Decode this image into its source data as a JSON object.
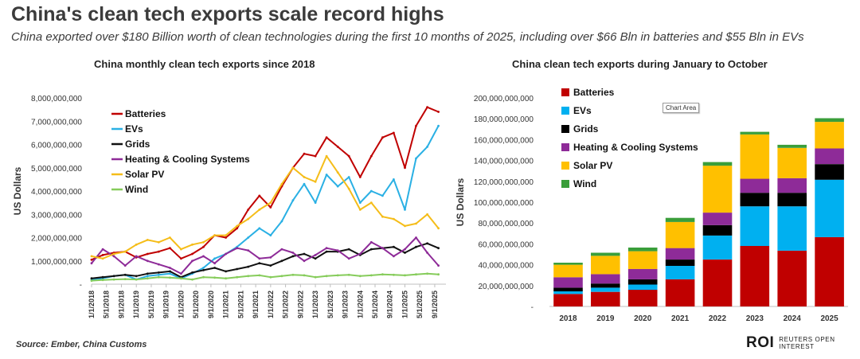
{
  "header": {
    "title": "China's clean tech exports scale record highs",
    "subtitle": "China exported over $180 Billion worth of clean technologies during the first 10 months of 2025, including over $66 Bln in batteries and $55 Bln in EVs"
  },
  "footer": {
    "source": "Source:  Ember, China Customs",
    "logo_main": "ROI",
    "logo_tag": "REUTERS OPEN\nINTEREST"
  },
  "tooltip": "Chart Area",
  "colors": {
    "batteries_line": "#c00000",
    "evs_line": "#2ab0e4",
    "grids_line": "#111111",
    "heating_line": "#8e2b98",
    "solar_line": "#f5bd19",
    "wind_line": "#86cc5b",
    "batteries_bar": "#c00000",
    "evs_bar": "#00b0f0",
    "grids_bar": "#000000",
    "heating_bar": "#8e2b98",
    "solar_bar": "#ffc000",
    "wind_bar": "#3a9e3a"
  },
  "chart_data": [
    {
      "type": "line",
      "title": "China monthly clean tech exports since 2018",
      "xlabel": "",
      "ylabel": "US Dollars",
      "ylim": [
        0,
        8000000000
      ],
      "y_ticks": [
        "-",
        "1,000,000,000",
        "2,000,000,000",
        "3,000,000,000",
        "4,000,000,000",
        "5,000,000,000",
        "6,000,000,000",
        "7,000,000,000",
        "8,000,000,000"
      ],
      "x_ticks": [
        "1/1/2018",
        "5/1/2018",
        "9/1/2018",
        "1/1/2019",
        "5/1/2019",
        "9/1/2019",
        "1/1/2020",
        "5/1/2020",
        "9/1/2020",
        "1/1/2021",
        "5/1/2021",
        "9/1/2021",
        "1/1/2022",
        "5/1/2022",
        "9/1/2022",
        "1/1/2023",
        "5/1/2023",
        "9/1/2023",
        "1/1/2024",
        "5/1/2024",
        "9/1/2024",
        "1/1/2025",
        "5/1/2025",
        "9/1/2025"
      ],
      "x": [
        "2018-01",
        "2018-04",
        "2018-07",
        "2018-10",
        "2019-01",
        "2019-04",
        "2019-07",
        "2019-10",
        "2020-01",
        "2020-04",
        "2020-07",
        "2020-10",
        "2021-01",
        "2021-04",
        "2021-07",
        "2021-10",
        "2022-01",
        "2022-04",
        "2022-07",
        "2022-10",
        "2023-01",
        "2023-04",
        "2023-07",
        "2023-10",
        "2024-01",
        "2024-04",
        "2024-07",
        "2024-10",
        "2025-01",
        "2025-04",
        "2025-07",
        "2025-10"
      ],
      "legend_position": "top-left",
      "series": [
        {
          "name": "Batteries",
          "values": [
            1050000000,
            1250000000,
            1350000000,
            1400000000,
            1150000000,
            1300000000,
            1400000000,
            1550000000,
            1100000000,
            1300000000,
            1600000000,
            2100000000,
            2000000000,
            2400000000,
            3200000000,
            3800000000,
            3300000000,
            4200000000,
            5000000000,
            5600000000,
            5500000000,
            6300000000,
            5900000000,
            5500000000,
            4600000000,
            5500000000,
            6300000000,
            6500000000,
            5000000000,
            6800000000,
            7600000000,
            7400000000
          ]
        },
        {
          "name": "EVs",
          "values": [
            200000000,
            250000000,
            350000000,
            400000000,
            200000000,
            350000000,
            400000000,
            450000000,
            250000000,
            450000000,
            700000000,
            1100000000,
            1300000000,
            1600000000,
            2000000000,
            2400000000,
            2100000000,
            2700000000,
            3600000000,
            4300000000,
            3500000000,
            4700000000,
            4200000000,
            4600000000,
            3500000000,
            4000000000,
            3800000000,
            4500000000,
            3200000000,
            5400000000,
            5900000000,
            6800000000
          ]
        },
        {
          "name": "Grids",
          "values": [
            250000000,
            300000000,
            350000000,
            400000000,
            350000000,
            450000000,
            500000000,
            550000000,
            300000000,
            500000000,
            600000000,
            700000000,
            550000000,
            650000000,
            750000000,
            900000000,
            800000000,
            1000000000,
            1200000000,
            1300000000,
            1100000000,
            1400000000,
            1400000000,
            1500000000,
            1250000000,
            1500000000,
            1550000000,
            1600000000,
            1350000000,
            1600000000,
            1750000000,
            1550000000
          ]
        },
        {
          "name": "Heating & Cooling Systems",
          "values": [
            900000000,
            1500000000,
            1200000000,
            800000000,
            1200000000,
            1000000000,
            850000000,
            700000000,
            450000000,
            1000000000,
            1200000000,
            900000000,
            1300000000,
            1550000000,
            1450000000,
            1100000000,
            1150000000,
            1500000000,
            1350000000,
            1000000000,
            1250000000,
            1550000000,
            1450000000,
            1100000000,
            1300000000,
            1800000000,
            1550000000,
            1200000000,
            1500000000,
            2000000000,
            1350000000,
            800000000
          ]
        },
        {
          "name": "Solar PV",
          "values": [
            1200000000,
            1100000000,
            1300000000,
            1400000000,
            1700000000,
            1900000000,
            1800000000,
            2000000000,
            1500000000,
            1700000000,
            1800000000,
            2100000000,
            2100000000,
            2500000000,
            2800000000,
            3200000000,
            3500000000,
            4300000000,
            5000000000,
            4600000000,
            4400000000,
            5500000000,
            4800000000,
            4100000000,
            3200000000,
            3500000000,
            2900000000,
            2800000000,
            2500000000,
            2600000000,
            3000000000,
            2400000000
          ]
        },
        {
          "name": "Wind",
          "values": [
            150000000,
            180000000,
            200000000,
            220000000,
            200000000,
            250000000,
            300000000,
            280000000,
            250000000,
            200000000,
            300000000,
            280000000,
            250000000,
            300000000,
            350000000,
            380000000,
            300000000,
            350000000,
            400000000,
            380000000,
            300000000,
            350000000,
            380000000,
            400000000,
            350000000,
            380000000,
            420000000,
            400000000,
            380000000,
            420000000,
            450000000,
            420000000
          ]
        }
      ]
    },
    {
      "type": "bar",
      "stacked": true,
      "title": "China clean tech exports during January to October",
      "xlabel": "",
      "ylabel": "US Dollars",
      "ylim": [
        0,
        200000000000
      ],
      "y_ticks": [
        "-",
        "20,000,000,000",
        "40,000,000,000",
        "60,000,000,000",
        "80,000,000,000",
        "100,000,000,000",
        "120,000,000,000",
        "140,000,000,000",
        "160,000,000,000",
        "180,000,000,000",
        "200,000,000,000"
      ],
      "categories": [
        "2018",
        "2019",
        "2020",
        "2021",
        "2022",
        "2023",
        "2024",
        "2025"
      ],
      "legend_position": "top-left",
      "series": [
        {
          "name": "Batteries",
          "values": [
            12000000000,
            14000000000,
            16000000000,
            26000000000,
            45000000000,
            58000000000,
            53500000000,
            66500000000
          ]
        },
        {
          "name": "EVs",
          "values": [
            2500000000,
            4000000000,
            5000000000,
            13000000000,
            23000000000,
            38000000000,
            42500000000,
            55000000000
          ]
        },
        {
          "name": "Grids",
          "values": [
            3500000000,
            4000000000,
            5000000000,
            6000000000,
            10000000000,
            13000000000,
            13000000000,
            15000000000
          ]
        },
        {
          "name": "Heating & Cooling Systems",
          "values": [
            10000000000,
            9000000000,
            10000000000,
            11000000000,
            12000000000,
            13500000000,
            14000000000,
            15000000000
          ]
        },
        {
          "name": "Solar PV",
          "values": [
            12000000000,
            17500000000,
            17000000000,
            25000000000,
            45000000000,
            42500000000,
            29000000000,
            25500000000
          ]
        },
        {
          "name": "Wind",
          "values": [
            2000000000,
            3000000000,
            3500000000,
            4000000000,
            3500000000,
            2500000000,
            3000000000,
            3500000000
          ]
        }
      ]
    }
  ]
}
